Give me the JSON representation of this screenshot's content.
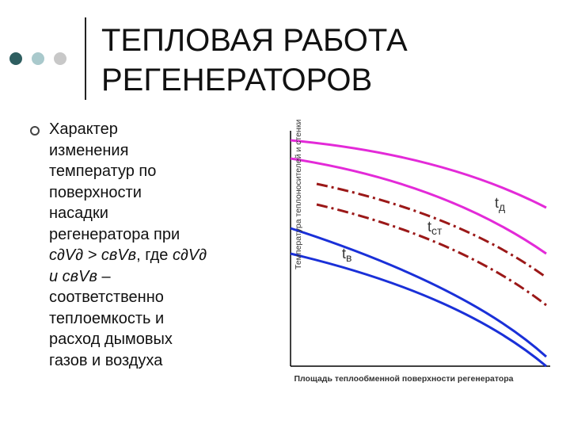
{
  "title": [
    "ТЕПЛОВАЯ РАБОТА",
    "РЕГЕНЕРАТОРОВ"
  ],
  "bullet": {
    "lines": [
      "Характер",
      "изменения",
      "температур по",
      "поверхности",
      "насадки",
      "регенератора при",
      [
        {
          "text": "с∂V∂ > свVв",
          "italic": true
        },
        {
          "text": ", где ",
          "italic": false
        },
        {
          "text": "с∂V∂",
          "italic": true
        }
      ],
      [
        {
          "text": "и свVв",
          "italic": true
        },
        {
          "text": " –",
          "italic": false
        }
      ],
      "соответственно",
      "теплоемкость и",
      "расход дымовых",
      "газов и воздуха"
    ]
  },
  "diagram": {
    "y_label": "Температура теплоносителей и стенки",
    "x_label": "Площадь теплообменной поверхности регенератора",
    "curve_labels": [
      {
        "main": "t",
        "sub": "д"
      },
      {
        "main": "t",
        "sub": "ст"
      },
      {
        "main": "t",
        "sub": "в"
      }
    ]
  }
}
